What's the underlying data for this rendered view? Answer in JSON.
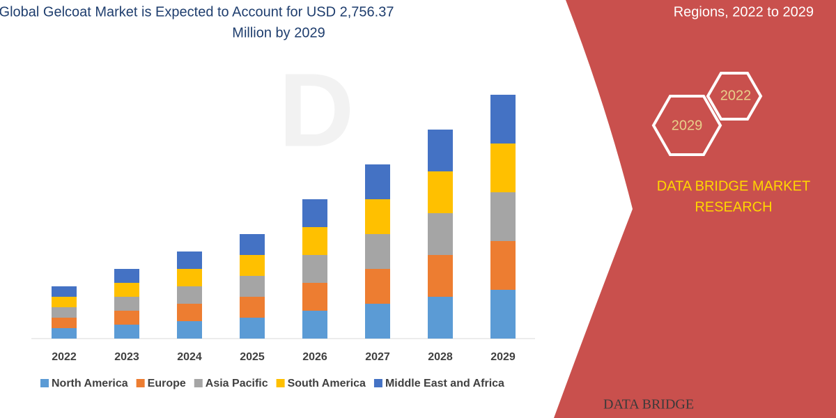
{
  "chart_data": {
    "type": "bar",
    "stacked": true,
    "title": "Global Gelcoat Market is Expected to Account for USD 2,756.37",
    "subtitle": "Million by 2029",
    "categories": [
      "2022",
      "2023",
      "2024",
      "2025",
      "2026",
      "2027",
      "2028",
      "2029"
    ],
    "series": [
      {
        "name": "North America",
        "color": "#5b9bd5",
        "values": [
          15,
          20,
          25,
          30,
          40,
          50,
          60,
          70
        ]
      },
      {
        "name": "Europe",
        "color": "#ed7d31",
        "values": [
          15,
          20,
          25,
          30,
          40,
          50,
          60,
          70
        ]
      },
      {
        "name": "Asia Pacific",
        "color": "#a5a5a5",
        "values": [
          15,
          20,
          25,
          30,
          40,
          50,
          60,
          70
        ]
      },
      {
        "name": "South America",
        "color": "#ffc000",
        "values": [
          15,
          20,
          25,
          30,
          40,
          50,
          60,
          70
        ]
      },
      {
        "name": "Middle East and Africa",
        "color": "#4472c4",
        "values": [
          15,
          20,
          25,
          30,
          40,
          50,
          60,
          70
        ]
      }
    ],
    "ylim": [
      0,
      360
    ],
    "legend": "bottom"
  },
  "panel": {
    "heading": "Regions, 2022 to 2029",
    "hex_top": "2022",
    "hex_bottom": "2029",
    "brand_line1": "DATA BRIDGE MARKET",
    "brand_line2": "RESEARCH",
    "logo": "DATA BRIDGE"
  }
}
